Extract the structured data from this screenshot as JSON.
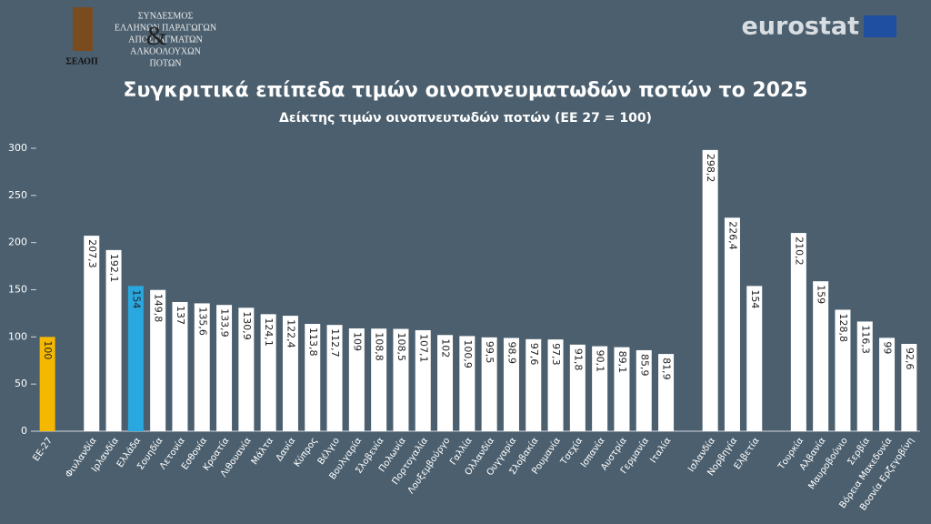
{
  "logo": {
    "lines": [
      "ΣΥΝΔΕΣΜΟΣ",
      "ΕΛΛΗΝΩΝ ΠΑΡΑΓΩΓΩΝ",
      "ΑΠΟΣΤΑΓΜΑΤΩΝ",
      "ΑΛΚΟΟΛΟΥΧΩΝ",
      "ΠΟΤΩΝ"
    ],
    "ampersand": "&",
    "acronym": "ΣΕΑΟΠ"
  },
  "brand": "eurostat",
  "chart_data": {
    "type": "bar",
    "title": "Συγκριτικά επίπεδα τιμών οινοπνευματωδών ποτών το 2025",
    "subtitle": "Δείκτης τιμών οινοπνευτωδών ποτών (ΕΕ 27 = 100)",
    "categories": [
      "ΕΕ-27",
      null,
      "Φινλανδία",
      "Ιρλανδία",
      "Ελλάδα",
      "Σουηδία",
      "Λετονία",
      "Εσθονία",
      "Κροατία",
      "Λιθουανία",
      "Μάλτα",
      "Δανία",
      "Κύπρος",
      "Βέλγιο",
      "Βουλγαρία",
      "Σλοβενία",
      "Πολωνία",
      "Πορτογαλία",
      "Λουξεμβούργο",
      "Γαλλία",
      "Ολλανδία",
      "Ουγγαρία",
      "Σλοβακία",
      "Ρουμανία",
      "Τσεχία",
      "Ισπανία",
      "Αυστρία",
      "Γερμανία",
      "Ιταλία",
      null,
      "Ισλανδία",
      "Νορβηγία",
      "Ελβετία",
      null,
      "Τουρκία",
      "Αλβανία",
      "Μαυροβούνιο",
      "Σερβία",
      "Βόρεια Μακεδονία",
      "Βοσνία Ερζεγοβίνη"
    ],
    "values": [
      100,
      null,
      207.3,
      192.1,
      154,
      149.8,
      137,
      135.6,
      133.9,
      130.9,
      124.1,
      122.4,
      113.8,
      112.7,
      109,
      108.8,
      108.5,
      107.1,
      102,
      100.9,
      99.5,
      98.9,
      97.6,
      97.3,
      91.8,
      90.1,
      89.1,
      85.9,
      81.9,
      null,
      298.2,
      226.4,
      154,
      null,
      210.2,
      159,
      128.8,
      116.3,
      99,
      92.6
    ],
    "value_labels": [
      "100",
      null,
      "207,3",
      "192,1",
      "154",
      "149,8",
      "137",
      "135,6",
      "133,9",
      "130,9",
      "124,1",
      "122,4",
      "113,8",
      "112,7",
      "109",
      "108,8",
      "108,5",
      "107,1",
      "102",
      "100,9",
      "99,5",
      "98,9",
      "97,6",
      "97,3",
      "91,8",
      "90,1",
      "89,1",
      "85,9",
      "81,9",
      null,
      "298,2",
      "226,4",
      "154",
      null,
      "210,2",
      "159",
      "128,8",
      "116,3",
      "99",
      "92,6"
    ],
    "color": "#ffffff",
    "colors": [
      "#f5b800",
      null,
      "#ffffff",
      "#ffffff",
      "#29a8e0",
      "#ffffff",
      "#ffffff",
      "#ffffff",
      "#ffffff",
      "#ffffff",
      "#ffffff",
      "#ffffff",
      "#ffffff",
      "#ffffff",
      "#ffffff",
      "#ffffff",
      "#ffffff",
      "#ffffff",
      "#ffffff",
      "#ffffff",
      "#ffffff",
      "#ffffff",
      "#ffffff",
      "#ffffff",
      "#ffffff",
      "#ffffff",
      "#ffffff",
      "#ffffff",
      "#ffffff",
      null,
      "#ffffff",
      "#ffffff",
      "#ffffff",
      null,
      "#ffffff",
      "#ffffff",
      "#ffffff",
      "#ffffff",
      "#ffffff",
      "#ffffff"
    ],
    "ylim": [
      0,
      300
    ],
    "yticks": [
      0,
      50,
      100,
      150,
      200,
      250,
      300
    ],
    "grid": false
  }
}
